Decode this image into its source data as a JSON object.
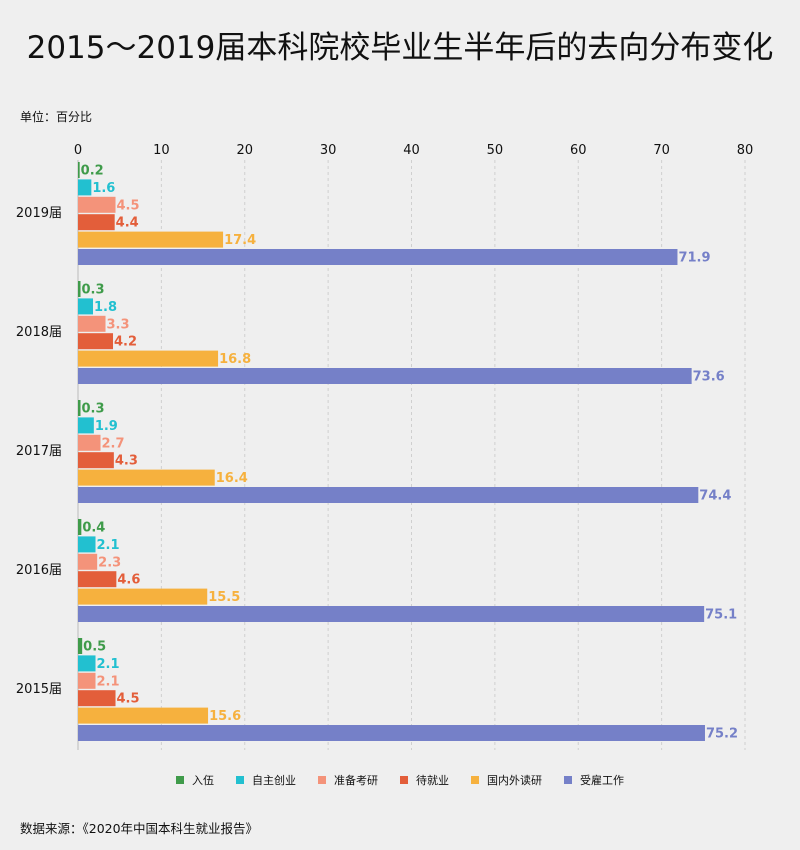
{
  "title": "2015～2019届本科院校毕业生半年后的去向分布变化",
  "unit_label": "单位：百分比",
  "source_label": "数据来源：《2020年中国本科生就业报告》",
  "chart_data": {
    "type": "bar",
    "orientation": "horizontal",
    "title": "2015～2019届本科院校毕业生半年后的去向分布变化",
    "xlim": [
      0,
      80
    ],
    "x_ticks": [
      0,
      10,
      20,
      30,
      40,
      50,
      60,
      70,
      80
    ],
    "x_axis_position": "top",
    "grid": "vertical dashed",
    "legend_position": "bottom",
    "categories": [
      "2019届",
      "2018届",
      "2017届",
      "2016届",
      "2015届"
    ],
    "series": [
      {
        "name": "入伍",
        "color": "#3f9b4a",
        "values": [
          0.2,
          0.3,
          0.3,
          0.4,
          0.5
        ]
      },
      {
        "name": "自主创业",
        "color": "#22c0d0",
        "values": [
          1.6,
          1.8,
          1.9,
          2.1,
          2.1
        ]
      },
      {
        "name": "准备考研",
        "color": "#f4937a",
        "values": [
          4.5,
          3.3,
          2.7,
          2.3,
          2.1
        ]
      },
      {
        "name": "待就业",
        "color": "#e35e3a",
        "values": [
          4.4,
          4.2,
          4.3,
          4.6,
          4.5
        ]
      },
      {
        "name": "国内外读研",
        "color": "#f6b13e",
        "values": [
          17.4,
          16.8,
          16.4,
          15.5,
          15.6
        ]
      },
      {
        "name": "受雇工作",
        "color": "#7580c8",
        "values": [
          71.9,
          73.6,
          74.4,
          75.1,
          75.2
        ]
      }
    ]
  }
}
